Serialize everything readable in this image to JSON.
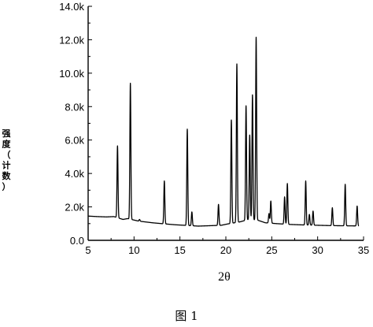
{
  "chart_data": {
    "type": "line",
    "title": "",
    "xlabel": "2θ",
    "ylabel": "强度（计数）",
    "xlim": [
      5,
      35
    ],
    "ylim": [
      0,
      14000
    ],
    "x_ticks": [
      5,
      10,
      15,
      20,
      25,
      30,
      35
    ],
    "x_tick_labels": [
      "5",
      "10",
      "15",
      "20",
      "25",
      "30",
      "35"
    ],
    "y_ticks": [
      0,
      2000,
      4000,
      6000,
      8000,
      10000,
      12000,
      14000
    ],
    "y_tick_labels": [
      "0.0",
      "2.0k",
      "4.0k",
      "6.0k",
      "8.0k",
      "10.0k",
      "12.0k",
      "14.0k"
    ],
    "grid": false,
    "legend": "none",
    "line_color": "#000000",
    "baseline": [
      [
        5.0,
        1450
      ],
      [
        6.0,
        1420
      ],
      [
        7.0,
        1400
      ],
      [
        7.8,
        1420
      ],
      [
        8.8,
        1250
      ],
      [
        9.3,
        1300
      ],
      [
        10.5,
        1150
      ],
      [
        12.0,
        1050
      ],
      [
        13.0,
        1000
      ],
      [
        14.5,
        930
      ],
      [
        15.5,
        900
      ],
      [
        17.0,
        850
      ],
      [
        18.5,
        880
      ],
      [
        19.5,
        900
      ],
      [
        20.2,
        980
      ],
      [
        21.5,
        1100
      ],
      [
        22.5,
        1250
      ],
      [
        23.5,
        1200
      ],
      [
        24.3,
        1050
      ],
      [
        25.5,
        1000
      ],
      [
        27.0,
        950
      ],
      [
        28.5,
        920
      ],
      [
        30.0,
        900
      ],
      [
        31.5,
        880
      ],
      [
        33.0,
        870
      ],
      [
        34.5,
        860
      ]
    ],
    "peaks": [
      {
        "x": 8.2,
        "y": 5650
      },
      {
        "x": 9.6,
        "y": 9400
      },
      {
        "x": 10.6,
        "y": 1250
      },
      {
        "x": 13.3,
        "y": 3550
      },
      {
        "x": 15.8,
        "y": 6650
      },
      {
        "x": 16.3,
        "y": 1700
      },
      {
        "x": 19.2,
        "y": 2150
      },
      {
        "x": 20.6,
        "y": 7200
      },
      {
        "x": 21.2,
        "y": 10550
      },
      {
        "x": 22.2,
        "y": 8050
      },
      {
        "x": 22.6,
        "y": 6300
      },
      {
        "x": 22.9,
        "y": 8700
      },
      {
        "x": 23.3,
        "y": 12150
      },
      {
        "x": 24.7,
        "y": 1600
      },
      {
        "x": 24.9,
        "y": 2350
      },
      {
        "x": 26.4,
        "y": 2600
      },
      {
        "x": 26.7,
        "y": 3400
      },
      {
        "x": 28.7,
        "y": 3550
      },
      {
        "x": 29.1,
        "y": 1550
      },
      {
        "x": 29.5,
        "y": 1750
      },
      {
        "x": 31.6,
        "y": 1950
      },
      {
        "x": 33.0,
        "y": 3350
      },
      {
        "x": 34.3,
        "y": 2050
      }
    ]
  },
  "figure_caption": "图 1"
}
